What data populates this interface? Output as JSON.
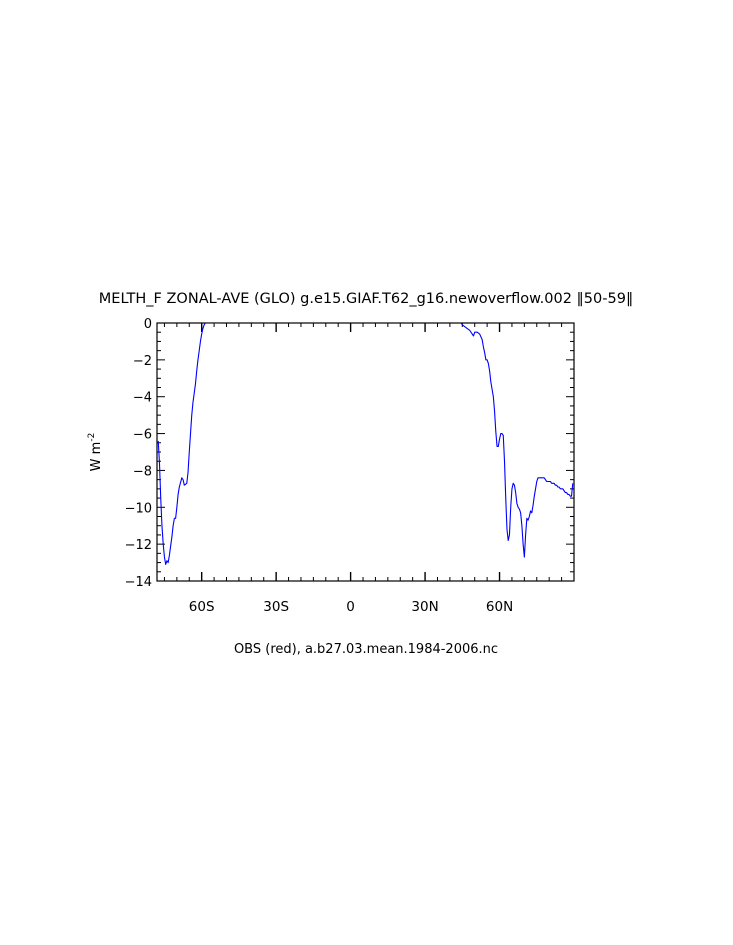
{
  "chart_data": {
    "type": "line",
    "title": "MELTH_F ZONAL-AVE (GLO) g.e15.GIAF.T62_g16.newoverflow.002 ‖50-59‖",
    "xlabel": "OBS (red), a.b27.03.mean.1984-2006.nc",
    "ylabel": "W m",
    "ylabel_exponent": "-2",
    "xlim": [
      -78,
      90
    ],
    "ylim": [
      -14,
      0
    ],
    "x_ticks": [
      {
        "value": -60,
        "label": "60S"
      },
      {
        "value": -30,
        "label": "30S"
      },
      {
        "value": 0,
        "label": "0"
      },
      {
        "value": 30,
        "label": "30N"
      },
      {
        "value": 60,
        "label": "60N"
      }
    ],
    "y_ticks": [
      {
        "value": 0,
        "label": "0"
      },
      {
        "value": -2,
        "label": "−2"
      },
      {
        "value": -4,
        "label": "−4"
      },
      {
        "value": -6,
        "label": "−6"
      },
      {
        "value": -8,
        "label": "−8"
      },
      {
        "value": -10,
        "label": "−10"
      },
      {
        "value": -12,
        "label": "−12"
      },
      {
        "value": -14,
        "label": "−14"
      }
    ],
    "series": [
      {
        "color": "#0000ff",
        "segments": [
          {
            "x": [
              -77.5,
              -77.0,
              -76.5,
              -76.0,
              -75.5,
              -75.0,
              -74.5,
              -74.0,
              -73.5,
              -73.0,
              -72.5,
              -72.0,
              -71.5,
              -71.0,
              -70.5,
              -70.0,
              -69.5,
              -69.0,
              -68.0,
              -67.5,
              -67.0,
              -66.0,
              -65.5,
              -65.0,
              -64.5,
              -64.0,
              -63.5,
              -63.0,
              -62.5,
              -62.0,
              -61.5,
              -61.0,
              -60.5,
              -60.0,
              -59.5,
              -59.0,
              -58.5,
              -58.0,
              -57.5,
              -57.0,
              -56.5,
              -56.0,
              -55.5,
              -55.0,
              -54.5,
              -54.0,
              -53.5,
              -53.0,
              -52.5
            ],
            "y": [
              -6.4,
              -7.6,
              -9.5,
              -11.0,
              -12.0,
              -12.7,
              -13.1,
              -12.9,
              -13.0,
              -12.6,
              -12.1,
              -11.6,
              -11.0,
              -10.6,
              -10.6,
              -10.0,
              -9.3,
              -8.9,
              -8.4,
              -8.5,
              -8.8,
              -8.7,
              -8.1,
              -7.0,
              -6.0,
              -5.0,
              -4.3,
              -3.8,
              -3.3,
              -2.6,
              -2.0,
              -1.5,
              -1.0,
              -0.6,
              -0.3,
              -0.1,
              0.0,
              0.0,
              0.0,
              0.0,
              0.0,
              0.0,
              0.0,
              0.0,
              0.0,
              0.0,
              0.0,
              0.0,
              0.0
            ]
          },
          {
            "x": [
              44.5,
              45.0,
              46.0,
              47.0,
              48.0,
              49.0,
              49.5,
              50.0,
              51.0,
              52.0,
              53.0,
              53.5,
              54.0,
              54.5,
              55.0,
              55.5,
              56.0,
              56.5,
              57.0,
              57.5,
              58.0,
              58.5,
              59.0,
              59.5,
              60.0,
              60.5,
              61.0,
              61.5,
              62.0,
              62.5,
              63.0,
              63.5,
              64.0,
              64.5,
              65.0,
              65.5,
              66.0,
              66.5,
              67.0,
              67.5,
              68.0,
              68.5,
              69.0,
              69.5,
              70.0,
              70.5,
              71.0,
              71.5,
              72.0,
              72.5,
              73.0,
              73.5,
              74.0,
              74.5,
              75.0,
              75.5,
              76.0,
              76.5,
              77.0,
              77.5,
              78.0,
              78.5,
              79.0,
              79.5,
              80.0,
              80.5,
              81.0,
              81.5,
              82.0,
              82.5,
              83.0,
              83.5,
              84.0,
              84.5,
              85.0,
              85.5,
              86.0,
              86.5,
              87.0,
              87.5,
              88.0,
              88.5,
              89.0,
              89.5
            ],
            "y": [
              0.0,
              -0.1,
              -0.2,
              -0.3,
              -0.4,
              -0.6,
              -0.7,
              -0.5,
              -0.5,
              -0.6,
              -0.9,
              -1.3,
              -1.6,
              -2.0,
              -2.0,
              -2.2,
              -2.6,
              -3.2,
              -3.6,
              -4.0,
              -4.8,
              -5.9,
              -6.7,
              -6.7,
              -6.3,
              -6.0,
              -6.0,
              -6.1,
              -7.5,
              -9.5,
              -11.2,
              -11.8,
              -11.5,
              -10.0,
              -9.0,
              -8.7,
              -8.8,
              -9.2,
              -9.8,
              -10.0,
              -10.1,
              -10.3,
              -11.0,
              -12.0,
              -12.7,
              -11.5,
              -10.6,
              -10.7,
              -10.5,
              -10.2,
              -10.3,
              -9.9,
              -9.4,
              -9.0,
              -8.6,
              -8.4,
              -8.4,
              -8.4,
              -8.4,
              -8.4,
              -8.4,
              -8.5,
              -8.6,
              -8.6,
              -8.6,
              -8.6,
              -8.7,
              -8.7,
              -8.7,
              -8.8,
              -8.8,
              -8.9,
              -8.9,
              -9.0,
              -9.0,
              -9.0,
              -9.1,
              -9.2,
              -9.2,
              -9.3,
              -9.3,
              -9.4,
              -9.4,
              -8.7
            ]
          }
        ]
      }
    ]
  }
}
